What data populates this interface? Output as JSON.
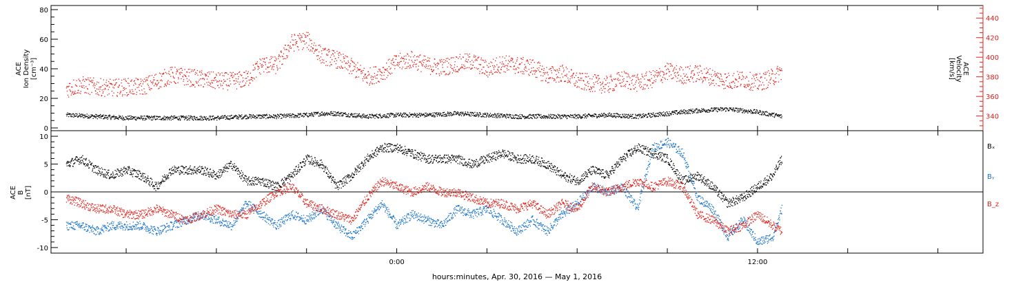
{
  "chart_data": [
    {
      "type": "scatter",
      "panel": "top",
      "ylabel_left": [
        "ACE",
        "Ion Density",
        "[cm⁻³]"
      ],
      "ylabel_right": [
        "ACE",
        "Velocity",
        "[km/s]"
      ],
      "left_ticks": [
        "0",
        "20",
        "40",
        "60",
        "80"
      ],
      "right_ticks": [
        "340",
        "360",
        "380",
        "400",
        "420",
        "440"
      ],
      "ylim_left": [
        0,
        80
      ],
      "ylim_right": [
        325,
        450
      ],
      "colors": {
        "density": "#000000",
        "velocity": "#e0201a"
      },
      "series": [
        {
          "key": "density",
          "axis": "left",
          "x": [
            -11.0,
            -10.0,
            -9.0,
            -8.0,
            -7.0,
            -6.0,
            -5.0,
            -4.0,
            -3.0,
            -2.5,
            -2.0,
            -1.5,
            -1.0,
            0.0,
            1.0,
            2.0,
            3.0,
            4.0,
            5.0,
            6.0,
            7.0,
            8.0,
            9.0,
            10.0,
            11.0,
            11.5,
            12.0,
            12.8
          ],
          "y": [
            9,
            8,
            7,
            7,
            7,
            7,
            8,
            8,
            9,
            10,
            10,
            9,
            8,
            9,
            9,
            10,
            9,
            8,
            8,
            8,
            9,
            8,
            10,
            12,
            13,
            12,
            11,
            8
          ]
        },
        {
          "key": "velocity",
          "axis": "right",
          "x": [
            -11.0,
            -10.5,
            -10.0,
            -9.5,
            -9.0,
            -8.5,
            -8.0,
            -7.5,
            -7.0,
            -6.5,
            -6.0,
            -5.5,
            -5.0,
            -4.5,
            -4.0,
            -3.5,
            -3.0,
            -2.5,
            -2.0,
            -1.5,
            -1.0,
            -0.5,
            0.0,
            0.5,
            1.0,
            1.5,
            2.0,
            2.5,
            3.0,
            3.5,
            4.0,
            4.5,
            5.0,
            5.5,
            6.0,
            6.5,
            7.0,
            7.5,
            8.0,
            8.5,
            9.0,
            9.5,
            10.0,
            10.5,
            11.0,
            11.5,
            12.0,
            12.5,
            12.8
          ],
          "y": [
            368,
            372,
            370,
            369,
            370,
            370,
            376,
            382,
            380,
            378,
            376,
            376,
            378,
            393,
            392,
            415,
            418,
            402,
            398,
            390,
            380,
            385,
            395,
            398,
            392,
            390,
            394,
            396,
            388,
            394,
            392,
            390,
            382,
            384,
            376,
            374,
            372,
            378,
            374,
            378,
            386,
            382,
            384,
            380,
            376,
            378,
            374,
            380,
            386
          ]
        }
      ]
    },
    {
      "type": "scatter",
      "panel": "bottom",
      "ylabel_left": [
        "ACE",
        "B",
        "[nT]"
      ],
      "left_ticks": [
        "-10",
        "-5",
        "0",
        "5",
        "10"
      ],
      "ylim": [
        -11,
        11
      ],
      "colors": {
        "bx": "#000000",
        "by": "#1a73c8",
        "bz": "#e0201a"
      },
      "legend": [
        {
          "key": "bx",
          "label": "Bₓ"
        },
        {
          "key": "by",
          "label": "Bᵧ"
        },
        {
          "key": "bz",
          "label": "B_z"
        }
      ],
      "series": [
        {
          "key": "bx",
          "x": [
            -11.0,
            -10.5,
            -10.0,
            -9.5,
            -9.0,
            -8.5,
            -8.0,
            -7.5,
            -7.0,
            -6.5,
            -6.0,
            -5.5,
            -5.0,
            -4.5,
            -4.0,
            -3.5,
            -3.0,
            -2.5,
            -2.0,
            -1.5,
            -1.0,
            -0.5,
            0.0,
            0.5,
            1.0,
            1.5,
            2.0,
            2.5,
            3.0,
            3.5,
            4.0,
            4.5,
            5.0,
            5.5,
            6.0,
            6.5,
            7.0,
            7.5,
            8.0,
            8.5,
            9.0,
            9.5,
            10.0,
            10.5,
            11.0,
            11.5,
            12.0,
            12.5,
            12.8
          ],
          "y": [
            5,
            6,
            4,
            3,
            4,
            3,
            1,
            4,
            4,
            4,
            3,
            5,
            2,
            2,
            1,
            3,
            6,
            5,
            1,
            3,
            6,
            8,
            8,
            7,
            6,
            6,
            6,
            5,
            6,
            7,
            6,
            6,
            5,
            3,
            2,
            4,
            3,
            6,
            8,
            7,
            6,
            2,
            3,
            1,
            -2,
            -1,
            1,
            3,
            6
          ]
        },
        {
          "key": "by",
          "x": [
            -11.0,
            -10.5,
            -10.0,
            -9.5,
            -9.0,
            -8.5,
            -8.0,
            -7.5,
            -7.0,
            -6.5,
            -6.0,
            -5.5,
            -5.0,
            -4.5,
            -4.0,
            -3.5,
            -3.0,
            -2.5,
            -2.0,
            -1.5,
            -1.0,
            -0.5,
            0.0,
            0.5,
            1.0,
            1.5,
            2.0,
            2.5,
            3.0,
            3.5,
            4.0,
            4.5,
            5.0,
            5.5,
            6.0,
            6.5,
            7.0,
            7.5,
            8.0,
            8.5,
            9.0,
            9.5,
            10.0,
            10.5,
            11.0,
            11.5,
            12.0,
            12.5,
            12.8
          ],
          "y": [
            -6,
            -6,
            -7,
            -6,
            -6,
            -6,
            -7,
            -6,
            -5,
            -4,
            -5,
            -6,
            -2,
            -4,
            -6,
            -4,
            -5,
            -3,
            -6,
            -8,
            -5,
            -2,
            -6,
            -4,
            -5,
            -6,
            -3,
            -4,
            -3,
            -5,
            -7,
            -5,
            -7,
            -4,
            -2,
            1,
            0,
            1,
            -3,
            8,
            9,
            7,
            -1,
            -3,
            -8,
            -5,
            -9,
            -8,
            -3
          ]
        },
        {
          "key": "bz",
          "x": [
            -11.0,
            -10.5,
            -10.0,
            -9.5,
            -9.0,
            -8.5,
            -8.0,
            -7.5,
            -7.0,
            -6.5,
            -6.0,
            -5.5,
            -5.0,
            -4.5,
            -4.0,
            -3.5,
            -3.0,
            -2.5,
            -2.0,
            -1.5,
            -1.0,
            -0.5,
            0.0,
            0.5,
            1.0,
            1.5,
            2.0,
            2.5,
            3.0,
            3.5,
            4.0,
            4.5,
            5.0,
            5.5,
            6.0,
            6.5,
            7.0,
            7.5,
            8.0,
            8.5,
            9.0,
            9.5,
            10.0,
            10.5,
            11.0,
            11.5,
            12.0,
            12.5,
            12.8
          ],
          "y": [
            -1,
            -2,
            -3,
            -3,
            -4,
            -4,
            -3,
            -4,
            -5,
            -4,
            -3,
            -4,
            -4,
            -2,
            0,
            1,
            -2,
            -3,
            -4,
            -5,
            -1,
            2,
            1,
            0,
            1,
            0,
            0,
            -1,
            -2,
            -2,
            -3,
            -2,
            -4,
            -2,
            -3,
            1,
            0,
            1,
            2,
            1,
            2,
            1,
            -4,
            -5,
            -7,
            -6,
            -4,
            -6,
            -7
          ]
        }
      ]
    }
  ],
  "x_axis": {
    "type": "time",
    "units": "hours relative to 2016-04-30 24:00",
    "range": [
      -11.5,
      19.5
    ],
    "tick_labels": [
      {
        "x": 0,
        "label": "0:00"
      },
      {
        "x": 12,
        "label": "12:00"
      }
    ],
    "xlabel": "hours:minutes, Apr. 30, 2016 — May  1, 2016"
  }
}
